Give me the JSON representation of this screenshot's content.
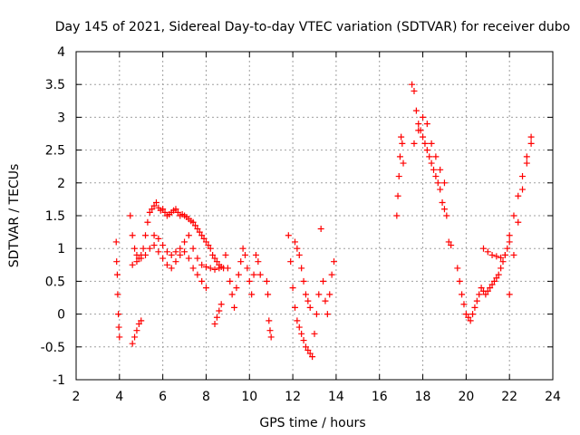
{
  "chart_data": {
    "type": "scatter",
    "title": "Day 145 of 2021, Sidereal Day-to-day VTEC variation (SDTVAR) for receiver dubo",
    "xlabel": "GPS time / hours",
    "ylabel": "SDTVAR / TECUs",
    "xlim": [
      2,
      24
    ],
    "ylim": [
      -1,
      4
    ],
    "xticks": [
      2,
      4,
      6,
      8,
      10,
      12,
      14,
      16,
      18,
      20,
      22,
      24
    ],
    "xtick_labels": [
      "2",
      "4",
      "6",
      "8",
      "10",
      "12",
      "14",
      "16",
      "18",
      "20",
      "22",
      "24"
    ],
    "yticks": [
      -1,
      -0.5,
      0,
      0.5,
      1,
      1.5,
      2,
      2.5,
      3,
      3.5,
      4
    ],
    "ytick_labels": [
      "-1",
      "-0.5",
      "0",
      "0.5",
      "1",
      "1.5",
      "2",
      "2.5",
      "3",
      "3.5",
      "4"
    ],
    "grid": true,
    "marker": "+",
    "color": "#ff0000",
    "series": [
      {
        "name": "s1",
        "x": [
          3.85,
          3.87,
          3.9,
          3.92,
          3.95,
          3.97,
          4.0
        ],
        "y": [
          1.1,
          0.8,
          0.6,
          0.3,
          0.0,
          -0.2,
          -0.35
        ]
      },
      {
        "name": "s2",
        "x": [
          4.5,
          4.6,
          4.7,
          4.8,
          4.9,
          5.0,
          5.1,
          5.2,
          5.3,
          5.4,
          5.5,
          5.6,
          5.7,
          5.8,
          5.9,
          6.0,
          6.1,
          6.2,
          6.3,
          6.4,
          6.5,
          6.6,
          6.7,
          6.8,
          6.9,
          7.0,
          7.1,
          7.2,
          7.3,
          7.4,
          7.5,
          7.6,
          7.7,
          7.8,
          7.9,
          8.0,
          8.1,
          8.2,
          8.3,
          8.4,
          8.5,
          8.6,
          8.7,
          8.8
        ],
        "y": [
          1.5,
          1.2,
          1.0,
          0.9,
          0.85,
          0.9,
          1.0,
          1.2,
          1.4,
          1.55,
          1.6,
          1.65,
          1.7,
          1.62,
          1.58,
          1.6,
          1.55,
          1.5,
          1.52,
          1.55,
          1.58,
          1.6,
          1.55,
          1.5,
          1.52,
          1.5,
          1.48,
          1.45,
          1.42,
          1.4,
          1.35,
          1.3,
          1.25,
          1.2,
          1.15,
          1.1,
          1.05,
          1.0,
          0.9,
          0.85,
          0.8,
          0.75,
          0.72,
          0.7
        ]
      },
      {
        "name": "s3",
        "x": [
          4.6,
          4.8,
          5.0,
          5.2,
          5.4,
          5.6,
          5.8,
          6.0,
          6.2,
          6.4,
          6.6,
          6.8,
          7.0,
          7.2,
          7.4,
          7.6,
          7.8,
          8.0,
          8.2,
          8.4,
          8.6
        ],
        "y": [
          0.75,
          0.8,
          0.85,
          0.9,
          1.0,
          1.2,
          1.15,
          1.05,
          0.95,
          0.9,
          0.95,
          1.0,
          1.1,
          1.2,
          1.0,
          0.85,
          0.75,
          0.72,
          0.7,
          0.68,
          0.7
        ]
      },
      {
        "name": "s4",
        "x": [
          5.6,
          5.8,
          6.0,
          6.2,
          6.4,
          6.6,
          6.8,
          7.0,
          7.2,
          7.4,
          7.6,
          7.8,
          8.0
        ],
        "y": [
          1.05,
          0.95,
          0.85,
          0.75,
          0.7,
          0.8,
          0.9,
          0.95,
          0.85,
          0.7,
          0.6,
          0.5,
          0.4
        ]
      },
      {
        "name": "s5",
        "x": [
          4.6,
          4.7,
          4.8,
          4.9,
          5.0
        ],
        "y": [
          -0.45,
          -0.35,
          -0.25,
          -0.15,
          -0.1
        ]
      },
      {
        "name": "s6",
        "x": [
          8.9,
          9.0,
          9.1,
          9.2,
          9.3,
          9.4,
          9.5,
          9.6,
          9.7,
          9.8,
          9.9,
          10.0,
          10.1,
          10.2,
          10.3,
          10.4,
          10.5
        ],
        "y": [
          0.9,
          0.7,
          0.5,
          0.3,
          0.1,
          0.4,
          0.6,
          0.8,
          1.0,
          0.9,
          0.7,
          0.5,
          0.3,
          0.6,
          0.9,
          0.8,
          0.6
        ]
      },
      {
        "name": "s7",
        "x": [
          8.4,
          8.5,
          8.6,
          8.7
        ],
        "y": [
          -0.15,
          -0.05,
          0.05,
          0.15
        ]
      },
      {
        "name": "s8",
        "x": [
          10.8,
          10.85,
          10.9,
          10.95,
          11.0
        ],
        "y": [
          0.5,
          0.3,
          -0.1,
          -0.25,
          -0.35
        ]
      },
      {
        "name": "s9",
        "x": [
          11.8,
          11.9,
          12.0,
          12.1,
          12.2,
          12.3,
          12.4,
          12.5,
          12.6,
          12.7,
          12.8,
          12.9,
          13.0,
          13.1,
          13.2,
          13.3,
          13.4,
          13.5,
          13.6,
          13.7,
          13.8,
          13.9
        ],
        "y": [
          1.2,
          0.8,
          0.4,
          0.1,
          -0.1,
          -0.2,
          -0.3,
          -0.4,
          -0.5,
          -0.55,
          -0.6,
          -0.65,
          -0.3,
          0.0,
          0.3,
          1.3,
          0.5,
          0.2,
          0.0,
          0.3,
          0.6,
          0.8
        ]
      },
      {
        "name": "s10",
        "x": [
          12.1,
          12.2,
          12.3,
          12.4,
          12.5,
          12.6,
          12.7,
          12.8
        ],
        "y": [
          1.1,
          1.0,
          0.9,
          0.7,
          0.5,
          0.3,
          0.2,
          0.1
        ]
      },
      {
        "name": "s11",
        "x": [
          16.8,
          16.85,
          16.9,
          16.95,
          17.0,
          17.05,
          17.1
        ],
        "y": [
          1.5,
          1.8,
          2.1,
          2.4,
          2.7,
          2.6,
          2.3
        ]
      },
      {
        "name": "s12",
        "x": [
          17.5,
          17.6,
          17.7,
          17.8,
          17.9,
          18.0,
          18.1,
          18.2,
          18.3,
          18.4,
          18.5,
          18.6,
          18.7,
          18.8,
          18.9,
          19.0,
          19.1
        ],
        "y": [
          3.5,
          3.4,
          3.1,
          2.9,
          2.8,
          2.7,
          2.6,
          2.5,
          2.4,
          2.3,
          2.2,
          2.1,
          2.0,
          1.9,
          1.7,
          1.6,
          1.5
        ]
      },
      {
        "name": "s13",
        "x": [
          17.6,
          17.8,
          18.0,
          18.2,
          18.4,
          18.6,
          18.8,
          19.0
        ],
        "y": [
          2.6,
          2.8,
          3.0,
          2.9,
          2.6,
          2.4,
          2.2,
          2.0
        ]
      },
      {
        "name": "s14",
        "x": [
          19.6,
          19.7,
          19.8,
          19.9,
          20.0,
          20.1,
          20.2,
          20.3,
          20.4,
          20.5,
          20.6,
          20.7,
          20.8,
          20.9,
          21.0,
          21.1,
          21.2,
          21.3,
          21.4,
          21.5,
          21.6,
          21.7,
          21.8,
          21.9,
          22.0
        ],
        "y": [
          0.7,
          0.5,
          0.3,
          0.15,
          0.0,
          -0.05,
          -0.1,
          0.0,
          0.1,
          0.2,
          0.3,
          0.4,
          0.35,
          0.3,
          0.35,
          0.4,
          0.45,
          0.5,
          0.55,
          0.6,
          0.7,
          0.8,
          0.9,
          1.0,
          1.1
        ]
      },
      {
        "name": "s15",
        "x": [
          20.8,
          21.0,
          21.2,
          21.4,
          21.6,
          21.8,
          22.0,
          22.2,
          22.4,
          22.6,
          22.8,
          23.0
        ],
        "y": [
          1.0,
          0.95,
          0.9,
          0.88,
          0.86,
          0.9,
          1.2,
          1.5,
          1.8,
          2.1,
          2.4,
          2.7
        ]
      },
      {
        "name": "s16",
        "x": [
          19.2,
          19.3
        ],
        "y": [
          1.1,
          1.05
        ]
      },
      {
        "name": "s17",
        "x": [
          22.0,
          22.2,
          22.4,
          22.6,
          22.8,
          23.0
        ],
        "y": [
          0.3,
          0.9,
          1.4,
          1.9,
          2.3,
          2.6
        ]
      }
    ]
  }
}
